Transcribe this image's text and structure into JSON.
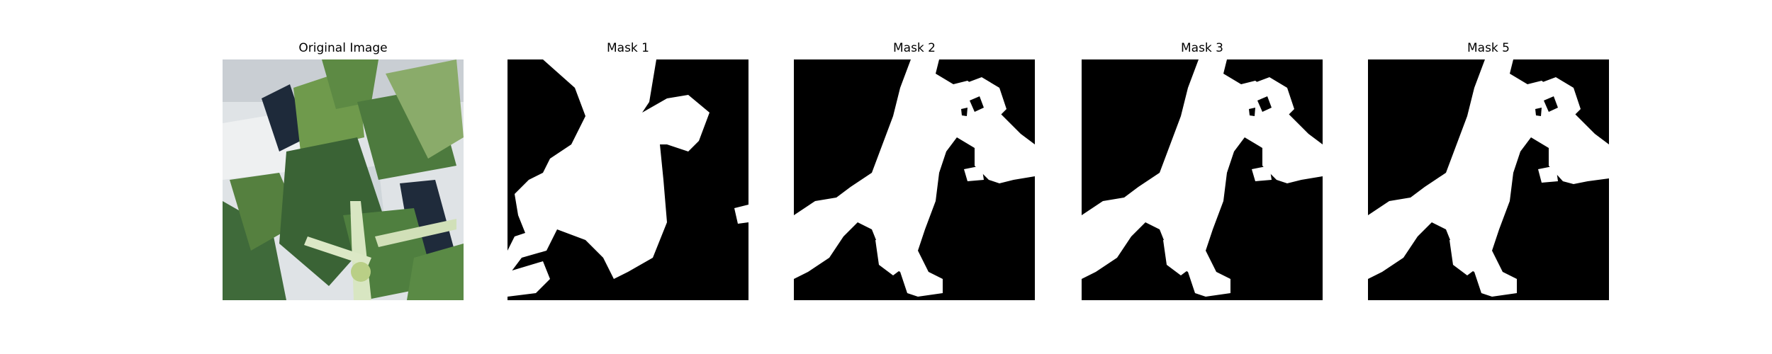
{
  "panels": [
    {
      "title": "Original Image",
      "kind": "photo",
      "icon": "plant-photo"
    },
    {
      "title": "Mask 1",
      "kind": "mask",
      "icon": "segmentation-mask"
    },
    {
      "title": "Mask 2",
      "kind": "mask",
      "icon": "segmentation-mask"
    },
    {
      "title": "Mask 3",
      "kind": "mask",
      "icon": "segmentation-mask"
    },
    {
      "title": "Mask 5",
      "kind": "mask",
      "icon": "segmentation-mask"
    }
  ],
  "colors": {
    "background": "#ffffff",
    "mask_background": "#000000",
    "mask_foreground": "#ffffff",
    "leaf_dark": "#3f6a3a",
    "leaf_light": "#86a96a",
    "backdrop": "#dde2e6",
    "stem": "#d8e6c2"
  }
}
